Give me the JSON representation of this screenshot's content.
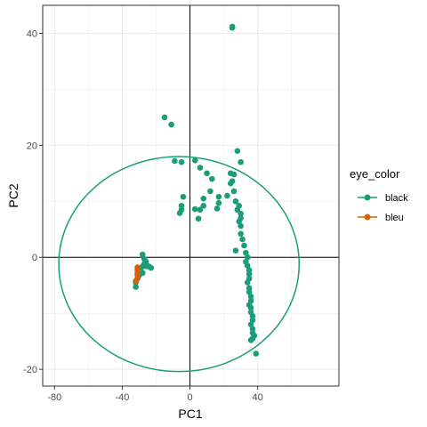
{
  "chart_data": {
    "type": "scatter",
    "title": "",
    "xlabel": "PC1",
    "ylabel": "PC2",
    "xlim": [
      -87,
      88
    ],
    "ylim": [
      -23,
      45
    ],
    "x_ticks": [
      -80,
      -40,
      0,
      40
    ],
    "x_tick_labels": [
      "-80",
      "-40",
      "0",
      "40"
    ],
    "y_ticks": [
      -20,
      0,
      20,
      40
    ],
    "y_tick_labels": [
      "-20",
      "0",
      "20",
      "40"
    ],
    "grid": true,
    "reference_lines": {
      "x": 0,
      "y": 0
    },
    "legend": {
      "title": "eye_color",
      "placement": "right",
      "entries": [
        "black",
        "bleu"
      ]
    },
    "colors": {
      "black": "#1b9e77",
      "bleu": "#d95f02"
    },
    "series": [
      {
        "name": "black",
        "color": "#1b9e77",
        "points": [
          [
            25,
            41.2
          ],
          [
            25,
            41
          ],
          [
            -15,
            25
          ],
          [
            -11,
            23.7
          ],
          [
            -9,
            17.2
          ],
          [
            -5,
            17
          ],
          [
            -4,
            10.8
          ],
          [
            -5,
            9.2
          ],
          [
            -5,
            8.5
          ],
          [
            -6,
            7.9
          ],
          [
            3,
            17.3
          ],
          [
            6,
            16
          ],
          [
            10,
            15
          ],
          [
            13,
            14
          ],
          [
            8,
            10.5
          ],
          [
            8,
            9.2
          ],
          [
            3,
            8.6
          ],
          [
            6,
            8.5
          ],
          [
            5,
            6.9
          ],
          [
            12,
            11.8
          ],
          [
            17,
            10.8
          ],
          [
            17,
            9.7
          ],
          [
            16,
            8.7
          ],
          [
            22,
            11
          ],
          [
            24,
            13.2
          ],
          [
            26,
            14.8
          ],
          [
            28,
            19
          ],
          [
            30,
            17
          ],
          [
            24,
            15
          ],
          [
            25,
            13.6
          ],
          [
            26,
            11.8
          ],
          [
            27,
            10
          ],
          [
            29,
            9.2
          ],
          [
            28,
            8.5
          ],
          [
            30,
            7.8
          ],
          [
            30,
            7
          ],
          [
            29,
            6.4
          ],
          [
            30,
            5.6
          ],
          [
            30,
            4.2
          ],
          [
            31,
            3.2
          ],
          [
            32,
            2.1
          ],
          [
            33,
            0.8
          ],
          [
            34,
            0
          ],
          [
            27,
            1.2
          ],
          [
            33,
            -0.8
          ],
          [
            34,
            -1.5
          ],
          [
            35,
            -2.3
          ],
          [
            35,
            -3
          ],
          [
            35,
            -3.8
          ],
          [
            34,
            -4.5
          ],
          [
            35,
            -5.5
          ],
          [
            35,
            -6.2
          ],
          [
            36,
            -7
          ],
          [
            36,
            -7.8
          ],
          [
            35,
            -8.5
          ],
          [
            36,
            -9
          ],
          [
            36,
            -9.8
          ],
          [
            37,
            -10.5
          ],
          [
            37,
            -11.2
          ],
          [
            36,
            -12
          ],
          [
            37,
            -12.8
          ],
          [
            37,
            -13.5
          ],
          [
            38,
            -14
          ],
          [
            37,
            -14.5
          ],
          [
            36,
            -14.8
          ],
          [
            39,
            -17.2
          ],
          [
            -32,
            -5.3
          ],
          [
            -32,
            -4.5
          ],
          [
            -31,
            -3.8
          ],
          [
            -31,
            -3
          ],
          [
            -30,
            -2.5
          ],
          [
            -29,
            -2
          ],
          [
            -28,
            -1.6
          ],
          [
            -27,
            -1.2
          ],
          [
            -26,
            -0.8
          ],
          [
            -26,
            -1.6
          ],
          [
            -27,
            -0.3
          ],
          [
            -28,
            0.5
          ],
          [
            -25,
            -1.5
          ],
          [
            -24,
            -1.7
          ],
          [
            -23,
            -1.9
          ],
          [
            -28,
            -2.8
          ],
          [
            -30,
            -3.2
          ]
        ]
      },
      {
        "name": "bleu",
        "color": "#d95f02",
        "points": [
          [
            -31,
            -1.8
          ],
          [
            -31,
            -2.5
          ],
          [
            -31,
            -3.2
          ],
          [
            -31,
            -3.8
          ],
          [
            -32,
            -4.2
          ],
          [
            -31,
            -2.2
          ]
        ]
      }
    ],
    "ellipse": {
      "series": "black",
      "center": [
        -6.5,
        -1.2
      ],
      "semi_axis_x": 71,
      "semi_axis_y": 19.2
    }
  }
}
